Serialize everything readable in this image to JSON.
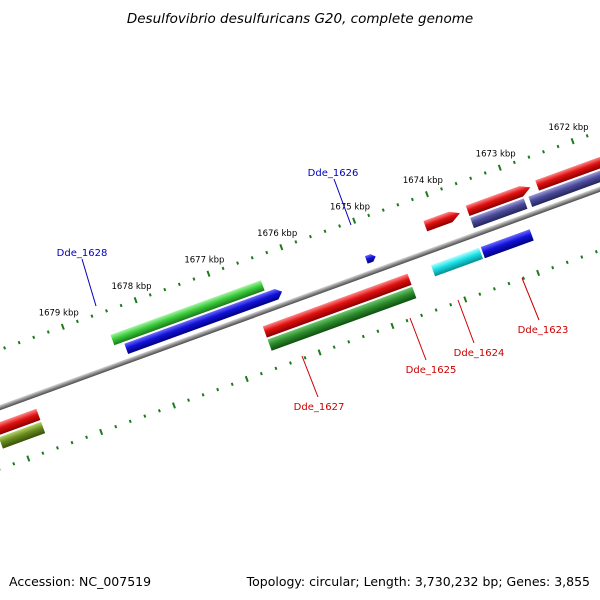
{
  "title": "Desulfovibrio desulfuricans G20, complete genome",
  "footer": {
    "accession": "Accession: NC_007519",
    "summary": "Topology: circular; Length: 3,730,232 bp; Genes: 3,855"
  },
  "colors": {
    "backbone": "#8a8a8a",
    "tick": "#1e7a1e",
    "label_forward": "#0000bb",
    "label_reverse": "#cc0000",
    "gene_red": "#e01010",
    "gene_blue": "#1212d8",
    "gene_green": "#3ccc3c",
    "gene_darkgreen": "#2e8e2e",
    "gene_cyan": "#18e0e6",
    "gene_navy": "#4a4a9a",
    "gene_olive": "#6a8c1e"
  },
  "scale": {
    "tick_labels": [
      "1679 kbp",
      "1678 kbp",
      "1677 kbp",
      "1676 kbp",
      "1675 kbp",
      "1674 kbp",
      "1673 kbp",
      "1672 kbp"
    ]
  },
  "genes": {
    "forward_labels": [
      "Dde_1628",
      "Dde_1626"
    ],
    "reverse_labels": [
      "Dde_1627",
      "Dde_1625",
      "Dde_1624",
      "Dde_1623"
    ]
  }
}
